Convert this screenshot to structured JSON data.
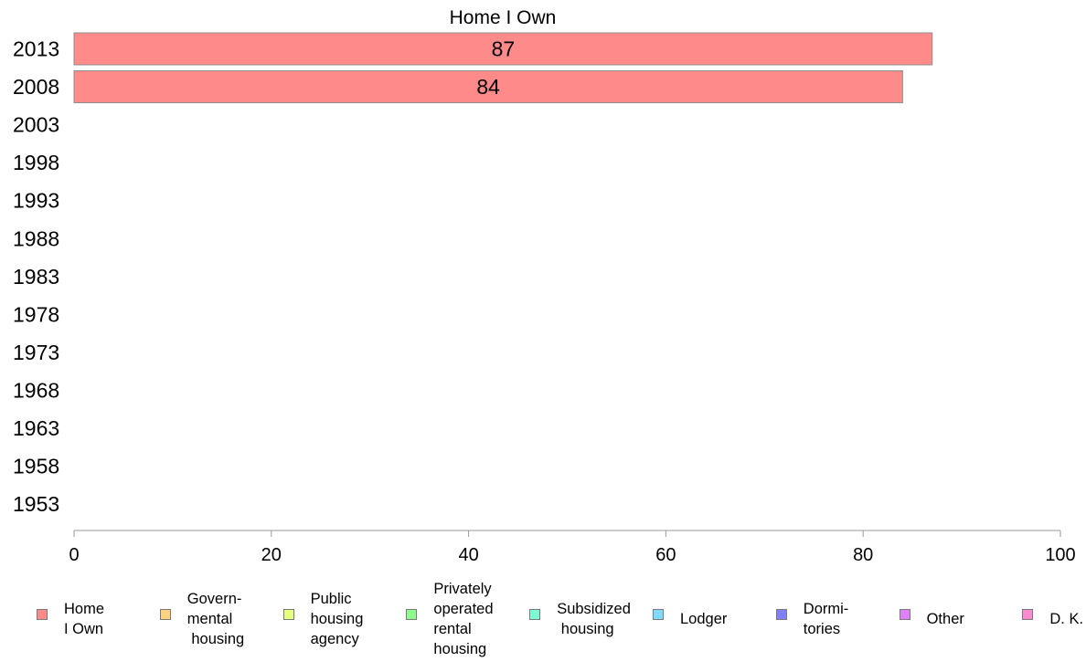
{
  "chart_data": {
    "type": "bar",
    "orientation": "horizontal",
    "title": "Home I Own",
    "categories": [
      "2013",
      "2008",
      "2003",
      "1998",
      "1993",
      "1988",
      "1983",
      "1978",
      "1973",
      "1968",
      "1963",
      "1958",
      "1953"
    ],
    "series": [
      {
        "name": "Home I Own",
        "values": [
          87,
          84,
          null,
          null,
          null,
          null,
          null,
          null,
          null,
          null,
          null,
          null,
          null
        ],
        "color": "#ff8a8a"
      }
    ],
    "data_labels": [
      "87",
      "84",
      "",
      "",
      "",
      "",
      "",
      "",
      "",
      "",
      "",
      "",
      ""
    ],
    "xlim": [
      0,
      100
    ],
    "xticks": [
      "0",
      "20",
      "40",
      "60",
      "80",
      "100"
    ],
    "grid": false,
    "legend_position": "bottom"
  },
  "legend": [
    {
      "label": "Home\nI Own",
      "color": "#ff8a8a"
    },
    {
      "label": "Govern-\nmental\n housing",
      "color": "#ffd27f"
    },
    {
      "label": "Public\nhousing\nagency",
      "color": "#e6ff80"
    },
    {
      "label": "Privately\noperated\nrental\nhousing",
      "color": "#8cff8c"
    },
    {
      "label": "Subsidized\n housing",
      "color": "#80ffd4"
    },
    {
      "label": "Lodger",
      "color": "#80d9ff"
    },
    {
      "label": "Dormi-\ntories",
      "color": "#8080ff"
    },
    {
      "label": "Other",
      "color": "#e080ff"
    },
    {
      "label": "D. K.",
      "color": "#ff8ad0"
    }
  ]
}
